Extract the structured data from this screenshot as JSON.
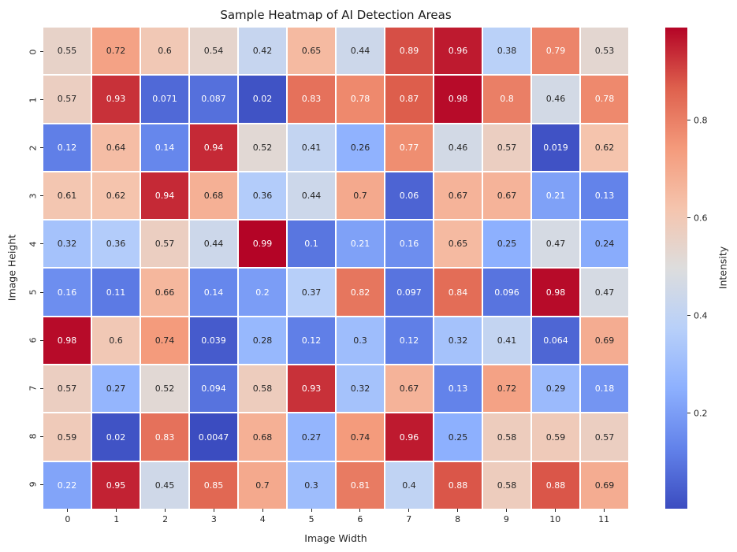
{
  "chart_data": {
    "type": "heatmap",
    "title": "Sample Heatmap of AI Detection Areas",
    "xlabel": "Image Width",
    "ylabel": "Image Height",
    "colorbar_label": "Intensity",
    "x_categories": [
      "0",
      "1",
      "2",
      "3",
      "4",
      "5",
      "6",
      "7",
      "8",
      "9",
      "10",
      "11"
    ],
    "y_categories": [
      "0",
      "1",
      "2",
      "3",
      "4",
      "5",
      "6",
      "7",
      "8",
      "9"
    ],
    "values": [
      [
        0.55,
        0.72,
        0.6,
        0.54,
        0.42,
        0.65,
        0.44,
        0.89,
        0.96,
        0.38,
        0.79,
        0.53
      ],
      [
        0.57,
        0.93,
        0.071,
        0.087,
        0.02,
        0.83,
        0.78,
        0.87,
        0.98,
        0.8,
        0.46,
        0.78
      ],
      [
        0.12,
        0.64,
        0.14,
        0.94,
        0.52,
        0.41,
        0.26,
        0.77,
        0.46,
        0.57,
        0.019,
        0.62
      ],
      [
        0.61,
        0.62,
        0.94,
        0.68,
        0.36,
        0.44,
        0.7,
        0.06,
        0.67,
        0.67,
        0.21,
        0.13
      ],
      [
        0.32,
        0.36,
        0.57,
        0.44,
        0.99,
        0.1,
        0.21,
        0.16,
        0.65,
        0.25,
        0.47,
        0.24
      ],
      [
        0.16,
        0.11,
        0.66,
        0.14,
        0.2,
        0.37,
        0.82,
        0.097,
        0.84,
        0.096,
        0.98,
        0.47
      ],
      [
        0.98,
        0.6,
        0.74,
        0.039,
        0.28,
        0.12,
        0.3,
        0.12,
        0.32,
        0.41,
        0.064,
        0.69
      ],
      [
        0.57,
        0.27,
        0.52,
        0.094,
        0.58,
        0.93,
        0.32,
        0.67,
        0.13,
        0.72,
        0.29,
        0.18
      ],
      [
        0.59,
        0.02,
        0.83,
        0.0047,
        0.68,
        0.27,
        0.74,
        0.96,
        0.25,
        0.58,
        0.59,
        0.57
      ],
      [
        0.22,
        0.95,
        0.45,
        0.85,
        0.7,
        0.3,
        0.81,
        0.4,
        0.88,
        0.58,
        0.88,
        0.69
      ]
    ],
    "vmin": 0.0047,
    "vmax": 0.99,
    "colormap": "coolwarm",
    "colorbar_ticks": [
      0.2,
      0.4,
      0.6,
      0.8
    ],
    "legend_position": "right-colorbar",
    "grid": false
  },
  "colors": {
    "annotation_dark": "#262626",
    "annotation_light": "#ffffff",
    "tick_color": "#262626",
    "background": "#ffffff",
    "colormap_stops": [
      [
        59,
        76,
        192
      ],
      [
        98,
        130,
        234
      ],
      [
        141,
        176,
        254
      ],
      [
        184,
        208,
        249
      ],
      [
        221,
        221,
        221
      ],
      [
        245,
        196,
        173
      ],
      [
        244,
        154,
        123
      ],
      [
        222,
        96,
        77
      ],
      [
        180,
        4,
        38
      ]
    ]
  }
}
